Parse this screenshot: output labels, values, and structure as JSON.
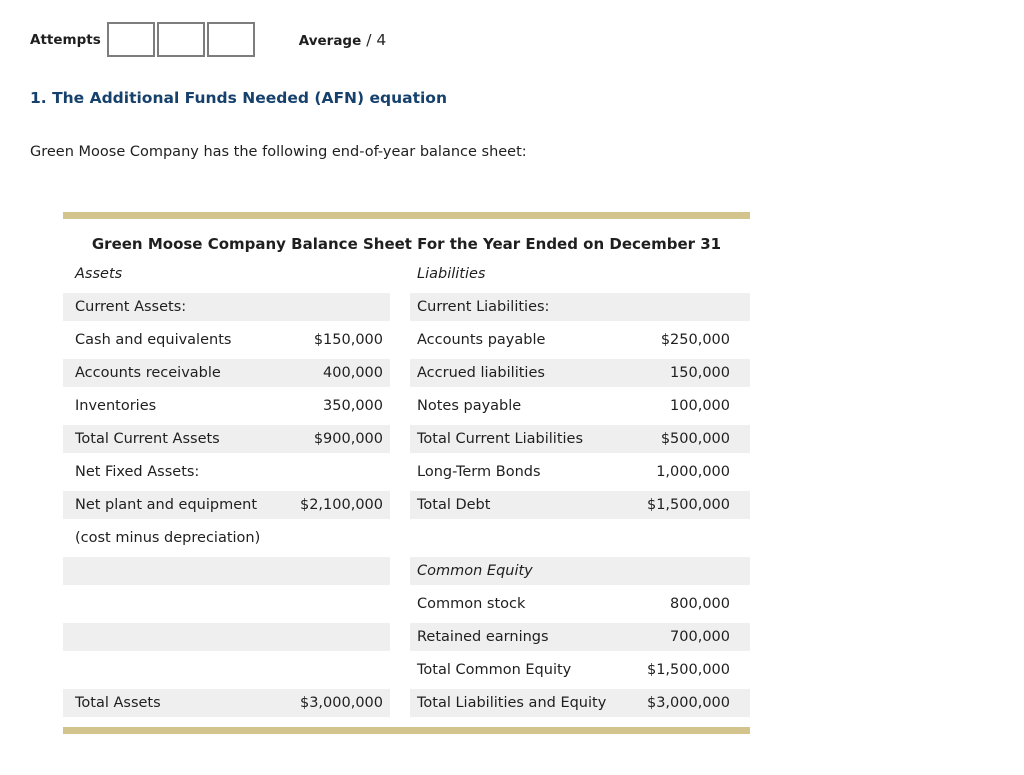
{
  "header": {
    "attempts_label": "Attempts",
    "attempt_box_count": 3,
    "average_label": "Average",
    "average_suffix": "/ 4"
  },
  "question": {
    "heading": "1. The Additional Funds Needed (AFN) equation",
    "intro": "Green Moose Company has the following end-of-year balance sheet:"
  },
  "balance_sheet": {
    "title": "Green Moose Company Balance Sheet For the Year Ended on December 31",
    "left_header": "Assets",
    "right_header": "Liabilities",
    "rows": [
      {
        "left_label": "Current Assets:",
        "left_value": "",
        "right_label": "Current Liabilities:",
        "right_value": ""
      },
      {
        "left_label": "Cash and equivalents",
        "left_value": "$150,000",
        "right_label": "Accounts payable",
        "right_value": "$250,000"
      },
      {
        "left_label": "Accounts receivable",
        "left_value": "400,000",
        "right_label": "Accrued liabilities",
        "right_value": "150,000"
      },
      {
        "left_label": "Inventories",
        "left_value": "350,000",
        "right_label": "Notes payable",
        "right_value": "100,000"
      },
      {
        "left_label": "Total Current Assets",
        "left_value": "$900,000",
        "right_label": "Total Current Liabilities",
        "right_value": "$500,000"
      },
      {
        "left_label": "Net Fixed Assets:",
        "left_value": "",
        "right_label": "Long-Term Bonds",
        "right_value": "1,000,000"
      },
      {
        "left_label": "Net plant and equipment",
        "left_value": "$2,100,000",
        "right_label": "Total Debt",
        "right_value": "$1,500,000"
      },
      {
        "left_label": "(cost minus depreciation)",
        "left_value": "",
        "right_label": "",
        "right_value": ""
      },
      {
        "left_label": "",
        "left_value": "",
        "right_label": "Common Equity",
        "right_value": ""
      },
      {
        "left_label": "",
        "left_value": "",
        "right_label": "Common stock",
        "right_value": "800,000"
      },
      {
        "left_label": "",
        "left_value": "",
        "right_label": "Retained earnings",
        "right_value": "700,000"
      },
      {
        "left_label": "",
        "left_value": "",
        "right_label": "Total Common Equity",
        "right_value": "$1,500,000"
      },
      {
        "left_label": "Total Assets",
        "left_value": "$3,000,000",
        "right_label": "Total Liabilities and Equity",
        "right_value": "$3,000,000"
      }
    ]
  },
  "colors": {
    "accent_bar": "#d3c48e",
    "row_stripe": "#efefef",
    "heading": "#17416d",
    "box_border": "#7d7d7d",
    "text": "#1f1f1f"
  }
}
